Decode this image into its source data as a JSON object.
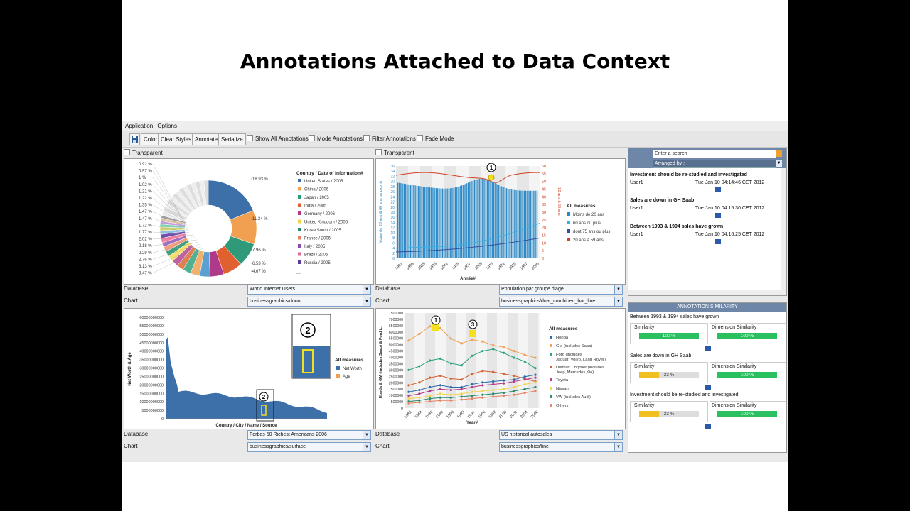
{
  "slide_title": "Annotations Attached to Data Context",
  "menu": [
    "Application",
    "Options"
  ],
  "toolbar": {
    "buttons": [
      "Color",
      "Clear Styles",
      "Annotate",
      "Serialize"
    ],
    "checks": [
      "Show All Annotations",
      "Mode Annotations",
      "Filter Annotations",
      "Fade Mode"
    ]
  },
  "panels": {
    "transparent_label": "Transparent",
    "database_label": "Database",
    "chart_label": "Chart",
    "p1": {
      "database": "World Internet Users",
      "chart": "businessgraphics/donut"
    },
    "p2": {
      "database": "Population par groupe d'age",
      "chart": "businessgraphics/dual_combined_bar_line"
    },
    "p3": {
      "database": "Forbes 50 Richest Americans 2006",
      "chart": "businessgraphics/surface"
    },
    "p4": {
      "database": "US historical autosales",
      "chart": "businessgraphics/line"
    }
  },
  "donut": {
    "legend_title": "Country / Date of Information#",
    "legend": [
      {
        "name": "United States / 2005",
        "color": "#3d6fa8"
      },
      {
        "name": "China / 2006",
        "color": "#f0a050"
      },
      {
        "name": "Japan / 2005",
        "color": "#2e9a7a"
      },
      {
        "name": "India / 2005",
        "color": "#e06030"
      },
      {
        "name": "Germany / 2006",
        "color": "#b03a8a"
      },
      {
        "name": "United Kingdom / 2005",
        "color": "#f3d24a"
      },
      {
        "name": "Korea South / 2005",
        "color": "#2a8a6a"
      },
      {
        "name": "France / 2006",
        "color": "#e88060"
      },
      {
        "name": "Italy / 2005",
        "color": "#8a4aa8"
      },
      {
        "name": "Brazil / 2005",
        "color": "#e06a8a"
      },
      {
        "name": "Russia / 2005",
        "color": "#5a3a9a"
      }
    ],
    "legend_more": "...",
    "right_labels": [
      "18.93 %",
      "11.34 %",
      "7.96 %",
      "6.53 %",
      "4.67 %"
    ],
    "left_labels": [
      "0.92 %",
      "0.97 %",
      "1 %",
      "1.02 %",
      "1.21 %",
      "1.22 %",
      "1.35 %",
      "1.47 %",
      "1.47 %",
      "1.72 %",
      "1.77 %",
      "2.02 %",
      "2.18 %",
      "2.29 %",
      "2.76 %",
      "3.13 %",
      "3.47 %"
    ]
  },
  "bar_line": {
    "legend_title": "All measures",
    "legend": [
      {
        "name": "Moins de 20 ans",
        "color": "#2a8ac8"
      },
      {
        "name": "60 ans ou plus",
        "color": "#3ab0e0"
      },
      {
        "name": "dont 75 ans ou plus",
        "color": "#3050a0"
      },
      {
        "name": "20 ans à 59 ans",
        "color": "#d04020"
      }
    ],
    "y_left": [
      "0",
      "2",
      "4",
      "6",
      "8",
      "10",
      "12",
      "14",
      "16",
      "18",
      "20",
      "22",
      "24",
      "26",
      "28",
      "30",
      "32",
      "34",
      "36"
    ],
    "y_right": [
      "0",
      "5",
      "10",
      "15",
      "20",
      "25",
      "30",
      "35",
      "40",
      "45",
      "50",
      "55",
      "60"
    ],
    "y_left_label": "Moins de 20 ans & 60 ans ou plus &",
    "y_right_label": "20 ans à 59 ans",
    "x_ticks": [
      "1901",
      "1909",
      "1925",
      "1933",
      "1941",
      "1949",
      "1957",
      "1965",
      "1973",
      "1981",
      "1989",
      "1997",
      "2005"
    ],
    "x_label": "Année#",
    "marker": "1"
  },
  "surface": {
    "y_ticks": [
      "0",
      "5000000000",
      "10000000000",
      "15000000000",
      "20000000000",
      "25000000000",
      "30000000000",
      "35000000000",
      "40000000000",
      "45000000000",
      "50000000000",
      "55000000000",
      "60000000000"
    ],
    "y_label": "Net Worth & Age",
    "x_label": "Country / City / Name / Source",
    "legend_title": "All measures",
    "legend": [
      {
        "name": "Net Worth",
        "color": "#3d6fa8"
      },
      {
        "name": "Age",
        "color": "#f0a050"
      }
    ],
    "marker": "2"
  },
  "line_chart": {
    "y_ticks": [
      "0",
      "500000",
      "1000000",
      "1500000",
      "2000000",
      "2500000",
      "3000000",
      "3500000",
      "4000000",
      "4500000",
      "5000000",
      "5500000",
      "6000000",
      "6500000",
      "7000000",
      "7500000"
    ],
    "y_label": "Honda & GM (includes Saab) & Ford (...",
    "x_ticks": [
      "1982",
      "1984",
      "1986",
      "1988",
      "1990",
      "1993",
      "1994",
      "1996",
      "1998",
      "2000",
      "2002",
      "2004",
      "2006"
    ],
    "x_label": "Year#",
    "legend_title": "All measures",
    "legend": [
      {
        "name": "Honda",
        "color": "#2a6aa8"
      },
      {
        "name": "GM (includes Saab)",
        "color": "#f0a050"
      },
      {
        "name": "Ford (includes Jaguar, Volvo, Land Rover)",
        "color": "#2aa080"
      },
      {
        "name": "Diamler Chrysler (includes Jeep, Mercedes,Kia)",
        "color": "#d06030"
      },
      {
        "name": "Toyota",
        "color": "#b03a8a"
      },
      {
        "name": "Nissan",
        "color": "#f3d24a"
      },
      {
        "name": "VW (includes Audi)",
        "color": "#2a8a6a"
      },
      {
        "name": "Others",
        "color": "#e88060"
      }
    ],
    "markers": [
      "1",
      "3"
    ]
  },
  "annotations": {
    "search_placeholder": "Enter a search",
    "arranged_by": "Arranged by :",
    "items": [
      {
        "title": "Investment should be re-studied and investigated",
        "user": "User1",
        "date": "Tue Jan 10 04:14:46 CET 2012"
      },
      {
        "title": "Sales are down in GH Saab",
        "user": "User1",
        "date": "Tue Jan 10 04:15:30 CET 2012"
      },
      {
        "title": "Between 1993 & 1994 sales have grown",
        "user": "User1",
        "date": "Tue Jan 10 04:16:25 CET 2012"
      }
    ]
  },
  "similarity": {
    "header": "ANNOTATION SIMILARITY",
    "similarity_label": "Similarity",
    "dimension_label": "Dimension Similarity",
    "items": [
      {
        "title": "Between 1993 & 1994 sales have grown",
        "sim": 1.0,
        "sim_text": "100 %",
        "dim": 1.0,
        "dim_text": "100 %"
      },
      {
        "title": "Sales are down in GH Saab",
        "sim": 0.33,
        "sim_text": "33 %",
        "dim": 1.0,
        "dim_text": "100 %"
      },
      {
        "title": "Investment should be re-studied and investigated",
        "sim": 0.33,
        "sim_text": "33 %",
        "dim": 1.0,
        "dim_text": "100 %"
      }
    ]
  }
}
